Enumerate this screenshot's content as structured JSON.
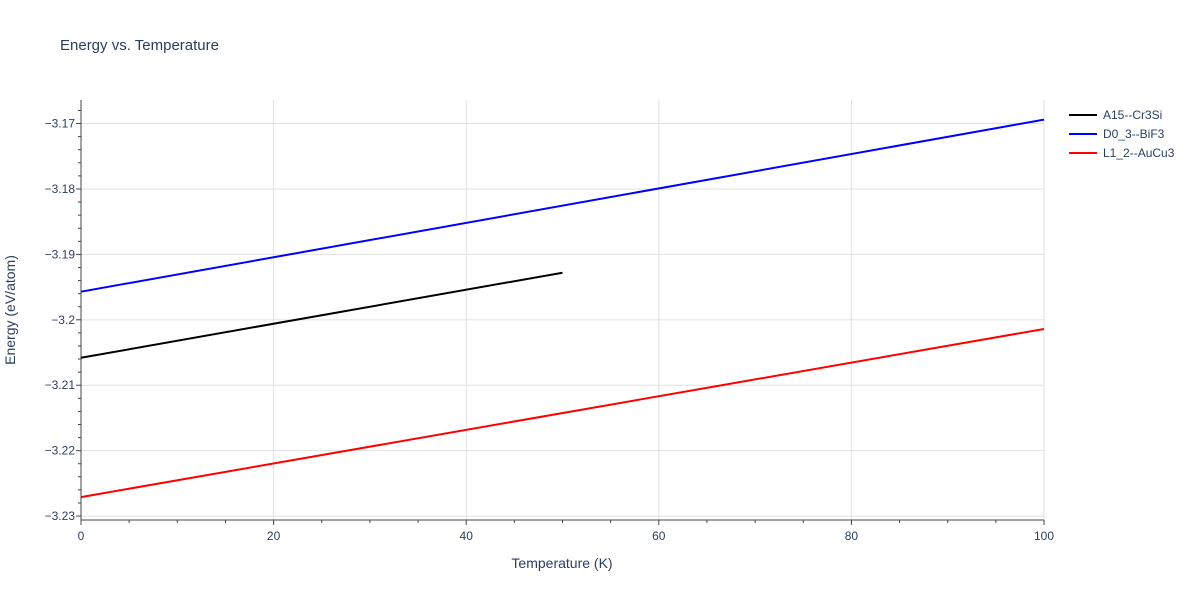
{
  "chart_data": {
    "type": "line",
    "title": "Energy vs. Temperature",
    "xlabel": "Temperature (K)",
    "ylabel": "Energy (eV/atom)",
    "xlim": [
      0,
      100
    ],
    "ylim": [
      -3.2306,
      -3.1664
    ],
    "x_ticks": [
      0,
      20,
      40,
      60,
      80,
      100
    ],
    "x_tick_labels": [
      "0",
      "20",
      "40",
      "60",
      "80",
      "100"
    ],
    "y_ticks": [
      -3.23,
      -3.22,
      -3.21,
      -3.2,
      -3.19,
      -3.18,
      -3.17
    ],
    "y_tick_labels": [
      "−3.23",
      "−3.22",
      "−3.21",
      "−3.2",
      "−3.19",
      "−3.18",
      "−3.17"
    ],
    "grid": true,
    "legend_position": "top-right outside",
    "series": [
      {
        "name": "A15--Cr3Si",
        "color": "#000000",
        "x": [
          0,
          50
        ],
        "y": [
          -3.2058,
          -3.1928
        ]
      },
      {
        "name": "D0_3--BiF3",
        "color": "#0000ff",
        "x": [
          0,
          100
        ],
        "y": [
          -3.1957,
          -3.1694
        ]
      },
      {
        "name": "L1_2--AuCu3",
        "color": "#ff0000",
        "x": [
          0,
          100
        ],
        "y": [
          -3.2271,
          -3.2014
        ]
      }
    ]
  }
}
